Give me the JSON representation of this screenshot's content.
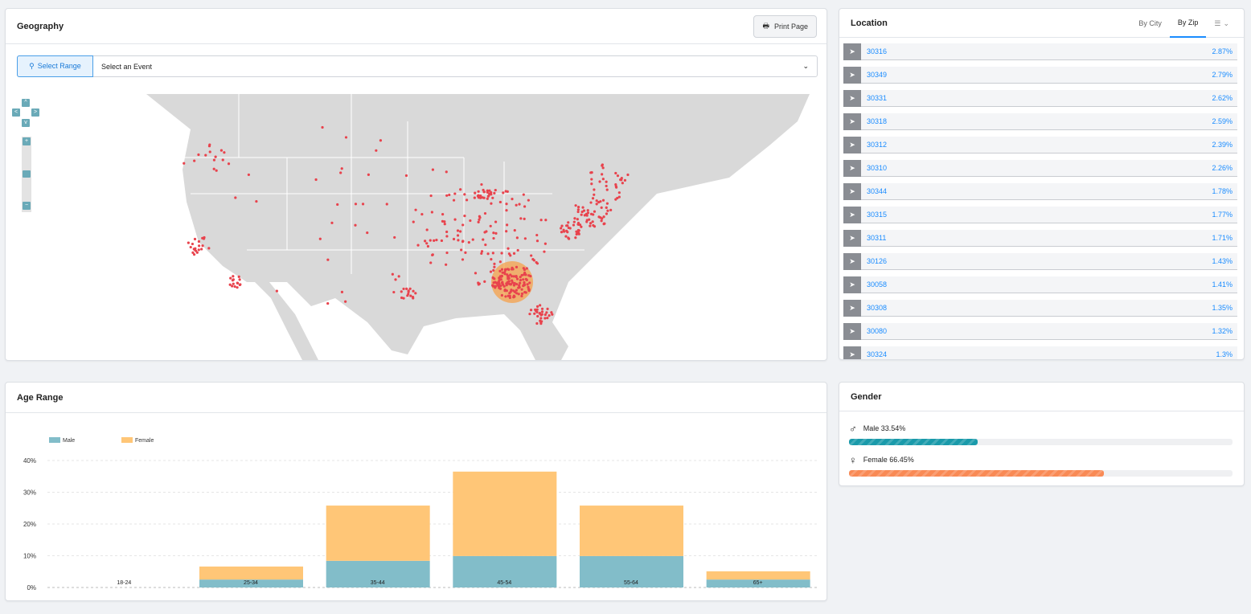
{
  "geography": {
    "title": "Geography",
    "print_label": "Print Page",
    "select_range_label": "Select Range",
    "event_placeholder": "Select an Event",
    "colors": {
      "land": "#d9d9d9",
      "dot": "#e8434d",
      "heat": "#f6a04a"
    }
  },
  "location": {
    "title": "Location",
    "tabs": [
      "By City",
      "By Zip"
    ],
    "active_tab": "By Zip",
    "rows": [
      {
        "zip": "30316",
        "pct": "2.87%"
      },
      {
        "zip": "30349",
        "pct": "2.79%"
      },
      {
        "zip": "30331",
        "pct": "2.62%"
      },
      {
        "zip": "30318",
        "pct": "2.59%"
      },
      {
        "zip": "30312",
        "pct": "2.39%"
      },
      {
        "zip": "30310",
        "pct": "2.26%"
      },
      {
        "zip": "30344",
        "pct": "1.78%"
      },
      {
        "zip": "30315",
        "pct": "1.77%"
      },
      {
        "zip": "30311",
        "pct": "1.71%"
      },
      {
        "zip": "30126",
        "pct": "1.43%"
      },
      {
        "zip": "30058",
        "pct": "1.41%"
      },
      {
        "zip": "30308",
        "pct": "1.35%"
      },
      {
        "zip": "30080",
        "pct": "1.32%"
      },
      {
        "zip": "30324",
        "pct": "1.3%"
      }
    ]
  },
  "age": {
    "title": "Age Range"
  },
  "gender": {
    "title": "Gender",
    "male_label": "Male 33.54%",
    "female_label": "Female 66.45%",
    "male_value": 33.54,
    "female_value": 66.45,
    "male_color": "#1a9aaa",
    "female_color": "#f98a55"
  },
  "chart_data": {
    "type": "bar",
    "stacked": true,
    "categories": [
      "18-24",
      "25-34",
      "35-44",
      "45-54",
      "55-64",
      "65+"
    ],
    "series": [
      {
        "name": "Male",
        "color": "#82bdc9",
        "values": [
          0,
          2.5,
          8.4,
          9.9,
          9.9,
          2.5
        ]
      },
      {
        "name": "Female",
        "color": "#ffc677",
        "values": [
          0,
          4.1,
          17.4,
          26.6,
          15.9,
          2.6
        ]
      }
    ],
    "ylim": [
      0,
      40
    ],
    "yticks": [
      "0%",
      "10%",
      "20%",
      "30%",
      "40%"
    ],
    "grid": true,
    "legend": "top-left"
  }
}
